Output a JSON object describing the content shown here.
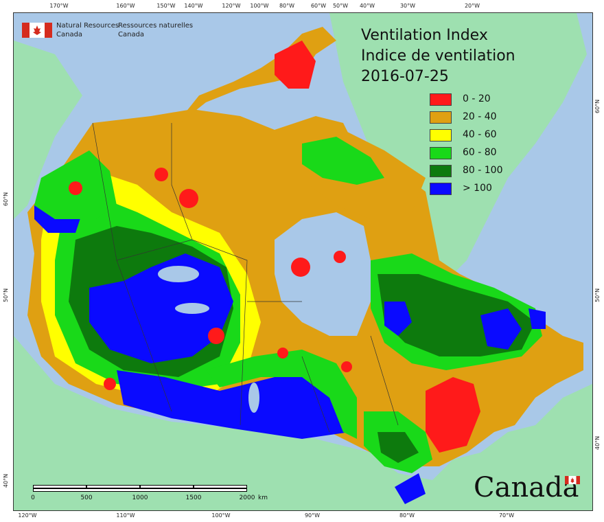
{
  "title": {
    "line1": "Ventilation Index",
    "line2": "Indice de ventilation",
    "date": "2016-07-25"
  },
  "agency": {
    "en_line1": "Natural Resources",
    "en_line2": "Canada",
    "fr_line1": "Ressources naturelles",
    "fr_line2": "Canada"
  },
  "legend": [
    {
      "label": "0 - 20",
      "color": "#ff1a1a"
    },
    {
      "label": "20 - 40",
      "color": "#dfa012"
    },
    {
      "label": "40 - 60",
      "color": "#ffff00"
    },
    {
      "label": "60 - 80",
      "color": "#19d919"
    },
    {
      "label": "80 - 100",
      "color": "#0d7a0d"
    },
    {
      "label": "> 100",
      "color": "#0a0aff"
    }
  ],
  "top_ticks": [
    "170°W",
    "160°W",
    "150°W",
    "140°W",
    "120°W",
    "100°W",
    "80°W",
    "60°W",
    "50°W",
    "40°W",
    "30°W",
    "20°W"
  ],
  "bottom_ticks": [
    "120°W",
    "110°W",
    "100°W",
    "90°W",
    "80°W",
    "70°W"
  ],
  "left_ticks": [
    "60°N",
    "50°N",
    "40°N"
  ],
  "right_ticks": [
    "60°N",
    "50°N",
    "40°N"
  ],
  "scale": {
    "labels": [
      "0",
      "500",
      "1000",
      "1500",
      "2000"
    ],
    "unit": "km"
  },
  "wordmark": "Canada",
  "colors": {
    "ocean": "#a9c8e8",
    "foreign_land": "#9ee0b0",
    "lakes": "#a9c8e8"
  }
}
